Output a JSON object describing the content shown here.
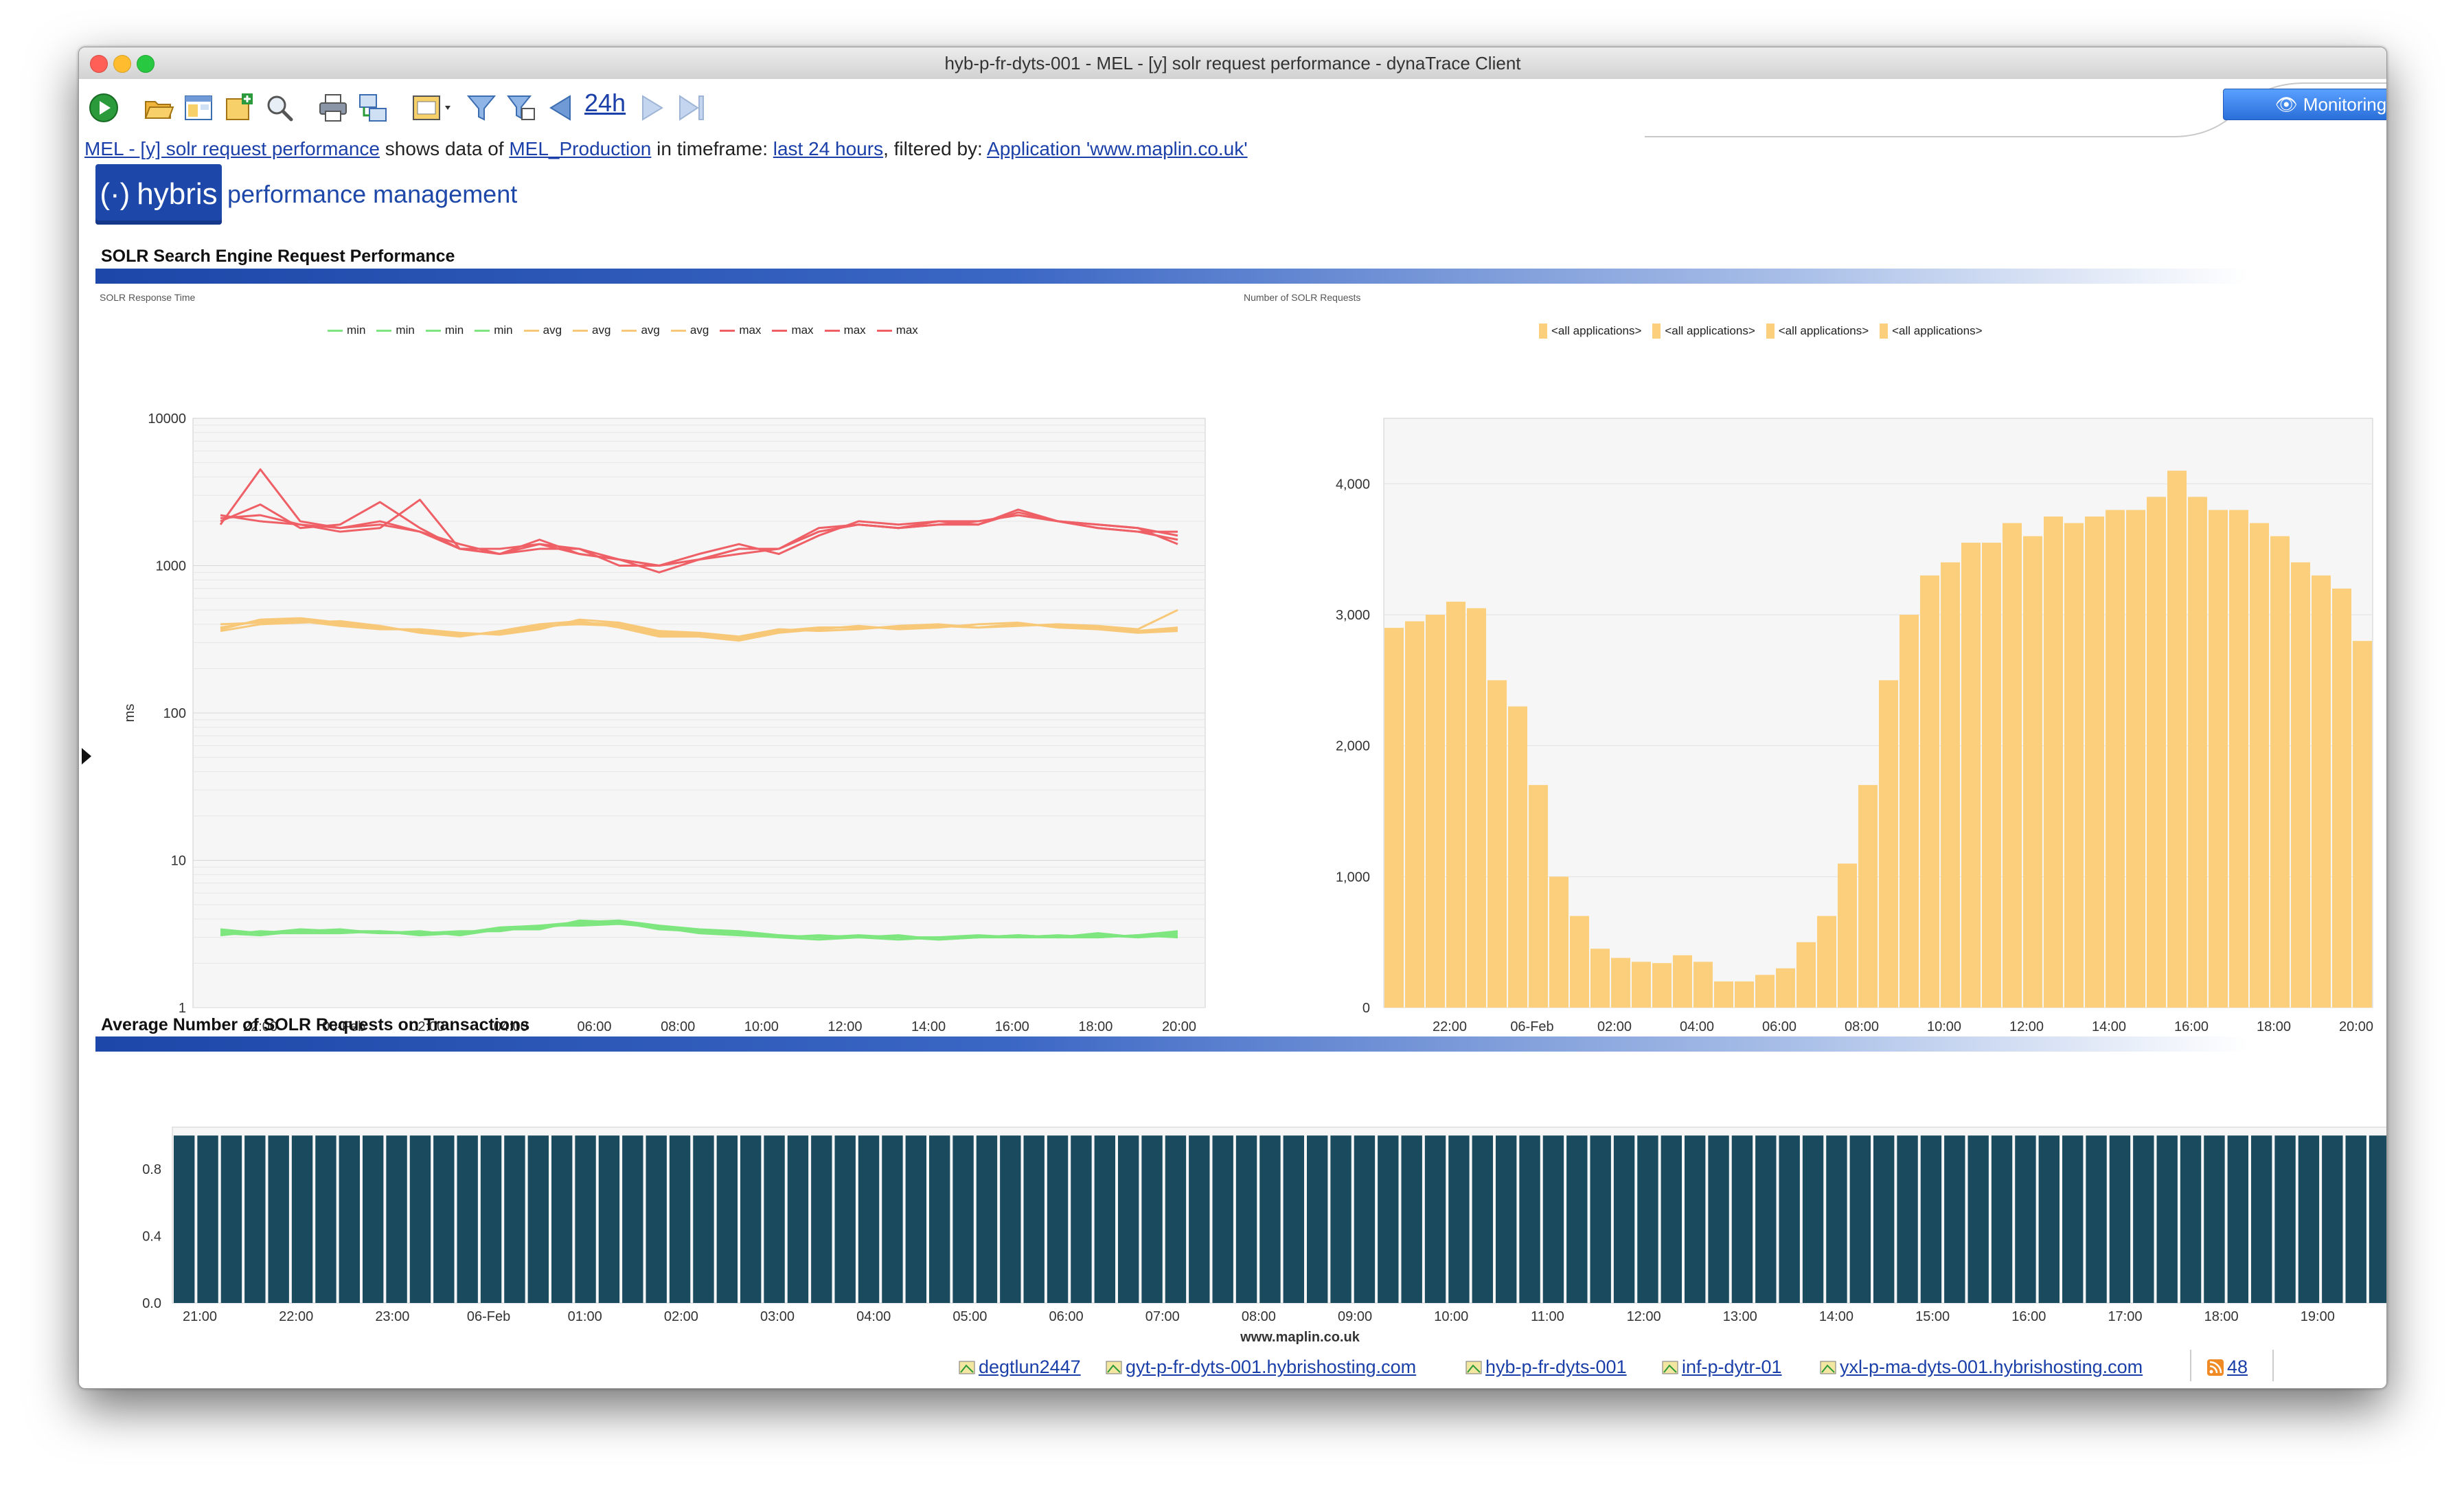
{
  "window": {
    "title": "hyb-p-fr-dyts-001 - MEL - [y] solr request performance - dynaTrace Client"
  },
  "toolbar": {
    "timeframe_label": "24h",
    "icons": [
      "play-icon",
      "open-folder-icon",
      "dashboard-icon",
      "add-dashlet-icon",
      "search-icon",
      "print-icon",
      "export-icon",
      "session-dropdown-icon",
      "filter-icon",
      "filter-edit-icon",
      "back-arrow-icon",
      "forward-arrow-icon",
      "last-icon"
    ],
    "monitoring_label": "Monitoring",
    "overflow_label": "»"
  },
  "info": {
    "dashboard_link": "MEL - [y] solr request performance",
    "text1": " shows data of ",
    "profile_link": "MEL_Production",
    "text2": " in timeframe: ",
    "timeframe_link": "last 24 hours",
    "text3": ", filtered by: ",
    "filter_link": "Application 'www.maplin.co.uk'"
  },
  "logo": {
    "brand": "hybris",
    "tagline": "performance management"
  },
  "sections": {
    "solr": "SOLR Search Engine Request Performance",
    "avg": "Average Number of SOLR Requests on Transactions"
  },
  "colors": {
    "min": "#7ee67e",
    "avg": "#f8c879",
    "max": "#ef6066",
    "bars_orange": "#fbcf7c",
    "bars_teal": "#1a4a5e",
    "brand_blue": "#1d47a8"
  },
  "chart_data": [
    {
      "type": "line",
      "title": "SOLR Response Time",
      "ylabel": "ms",
      "yscale": "log",
      "ylim": [
        1,
        10000
      ],
      "ytick_labels": [
        "10000",
        "1000",
        "100",
        "10",
        "1"
      ],
      "xtick_labels": [
        "22:00",
        "06-Feb",
        "02:00",
        "04:00",
        "06:00",
        "08:00",
        "10:00",
        "12:00",
        "14:00",
        "16:00",
        "18:00",
        "20:00"
      ],
      "legend": [
        "min",
        "min",
        "min",
        "min",
        "avg",
        "avg",
        "avg",
        "avg",
        "max",
        "max",
        "max",
        "max"
      ],
      "x": [
        "20:00",
        "21:00",
        "22:00",
        "23:00",
        "06-Feb",
        "01:00",
        "02:00",
        "03:00",
        "04:00",
        "05:00",
        "06:00",
        "07:00",
        "08:00",
        "09:00",
        "10:00",
        "11:00",
        "12:00",
        "13:00",
        "14:00",
        "15:00",
        "16:00",
        "17:00",
        "18:00",
        "19:00",
        "20:00"
      ],
      "series": [
        {
          "name": "min",
          "values": [
            3.3,
            3.2,
            3.4,
            3.3,
            3.2,
            3.3,
            3.1,
            3.4,
            3.5,
            3.7,
            3.8,
            3.4,
            3.3,
            3.2,
            3.0,
            3.1,
            3.0,
            2.9,
            3.0,
            3.0,
            3.1,
            3.0,
            3.1,
            3.0,
            3.2
          ]
        },
        {
          "name": "min",
          "values": [
            3.1,
            3.3,
            3.2,
            3.2,
            3.3,
            3.1,
            3.2,
            3.5,
            3.6,
            3.8,
            3.9,
            3.6,
            3.4,
            3.3,
            3.1,
            3.0,
            3.1,
            3.0,
            2.9,
            3.0,
            3.0,
            3.1,
            3.0,
            3.1,
            3.3
          ]
        },
        {
          "name": "min",
          "values": [
            3.2,
            3.1,
            3.3,
            3.4,
            3.2,
            3.2,
            3.3,
            3.3,
            3.6,
            3.6,
            3.7,
            3.5,
            3.2,
            3.1,
            3.0,
            2.9,
            3.0,
            3.0,
            3.0,
            3.1,
            3.0,
            3.0,
            3.2,
            3.0,
            3.1
          ]
        },
        {
          "name": "min",
          "values": [
            3.4,
            3.2,
            3.2,
            3.3,
            3.3,
            3.2,
            3.2,
            3.4,
            3.4,
            3.9,
            3.8,
            3.5,
            3.3,
            3.2,
            3.1,
            3.0,
            3.0,
            3.1,
            2.9,
            3.0,
            3.1,
            3.0,
            3.0,
            3.1,
            3.0
          ]
        },
        {
          "name": "avg",
          "values": [
            380,
            420,
            430,
            400,
            380,
            360,
            340,
            350,
            380,
            410,
            400,
            350,
            340,
            320,
            360,
            380,
            380,
            380,
            390,
            380,
            400,
            390,
            380,
            360,
            380
          ]
        },
        {
          "name": "avg",
          "values": [
            360,
            400,
            410,
            420,
            390,
            350,
            330,
            360,
            400,
            420,
            380,
            330,
            330,
            310,
            350,
            370,
            390,
            370,
            380,
            400,
            410,
            380,
            370,
            350,
            360
          ]
        },
        {
          "name": "avg",
          "values": [
            400,
            410,
            420,
            390,
            370,
            370,
            350,
            340,
            370,
            430,
            410,
            360,
            350,
            330,
            370,
            360,
            370,
            390,
            400,
            380,
            390,
            400,
            390,
            370,
            500
          ]
        },
        {
          "name": "avg",
          "values": [
            370,
            430,
            440,
            410,
            380,
            360,
            340,
            350,
            390,
            400,
            390,
            340,
            340,
            320,
            360,
            380,
            380,
            380,
            390,
            380,
            400,
            390,
            380,
            360,
            370
          ]
        },
        {
          "name": "max",
          "values": [
            2200,
            2000,
            1900,
            1800,
            2000,
            1700,
            1300,
            1200,
            1400,
            1300,
            1100,
            1000,
            1100,
            1300,
            1300,
            1700,
            1900,
            1800,
            1900,
            1900,
            2300,
            2000,
            1900,
            1800,
            1600
          ]
        },
        {
          "name": "max",
          "values": [
            2000,
            2600,
            1800,
            1900,
            2700,
            1800,
            1300,
            1200,
            1500,
            1200,
            1100,
            1000,
            1200,
            1400,
            1200,
            1600,
            2000,
            1900,
            2000,
            2000,
            2200,
            2000,
            1800,
            1700,
            1500
          ]
        },
        {
          "name": "max",
          "values": [
            1900,
            4500,
            2000,
            1800,
            1900,
            1700,
            1400,
            1200,
            1300,
            1300,
            1000,
            1000,
            1100,
            1300,
            1300,
            1800,
            1900,
            1800,
            2000,
            1900,
            2400,
            2000,
            1900,
            1800,
            1400
          ]
        },
        {
          "name": "max",
          "values": [
            2100,
            2200,
            1900,
            1700,
            1800,
            2800,
            1300,
            1300,
            1400,
            1200,
            1100,
            900,
            1100,
            1200,
            1300,
            1700,
            1900,
            1800,
            1900,
            2000,
            2200,
            2000,
            1800,
            1700,
            1700
          ]
        }
      ]
    },
    {
      "type": "bar",
      "title": "Number of SOLR Requests",
      "ylim": [
        0,
        4500
      ],
      "ytick_labels": [
        "4,000",
        "3,000",
        "2,000",
        "1,000",
        "0"
      ],
      "xtick_labels": [
        "22:00",
        "06-Feb",
        "02:00",
        "04:00",
        "06:00",
        "08:00",
        "10:00",
        "12:00",
        "14:00",
        "16:00",
        "18:00",
        "20:00"
      ],
      "legend": [
        "<all applications>",
        "<all applications>",
        "<all applications>",
        "<all applications>"
      ],
      "x": [
        "21:00",
        "21:30",
        "22:00",
        "22:30",
        "23:00",
        "23:30",
        "06-Feb",
        "00:30",
        "01:00",
        "01:30",
        "02:00",
        "02:30",
        "03:00",
        "03:30",
        "04:00",
        "04:30",
        "05:00",
        "05:30",
        "06:00",
        "06:30",
        "07:00",
        "07:30",
        "08:00",
        "08:30",
        "09:00",
        "09:30",
        "10:00",
        "10:30",
        "11:00",
        "11:30",
        "12:00",
        "12:30",
        "13:00",
        "13:30",
        "14:00",
        "14:30",
        "15:00",
        "15:30",
        "16:00",
        "16:30",
        "17:00",
        "17:30",
        "18:00",
        "18:30",
        "19:00",
        "19:30",
        "20:00",
        "20:30"
      ],
      "values": [
        2900,
        2950,
        3000,
        3100,
        3050,
        2500,
        2300,
        1700,
        1000,
        700,
        450,
        380,
        350,
        340,
        400,
        350,
        200,
        200,
        250,
        300,
        500,
        700,
        1100,
        1700,
        2500,
        3000,
        3300,
        3400,
        3550,
        3550,
        3700,
        3600,
        3750,
        3700,
        3750,
        3800,
        3800,
        3900,
        4100,
        3900,
        3800,
        3800,
        3700,
        3600,
        3400,
        3300,
        3200,
        2800
      ]
    },
    {
      "type": "bar",
      "title": "Average Number of SOLR Requests on Transactions",
      "xlabel": "www.maplin.co.uk",
      "ylim": [
        0,
        1.05
      ],
      "ytick_labels": [
        "0.8",
        "0.4",
        "0.0"
      ],
      "xtick_labels": [
        "21:00",
        "22:00",
        "23:00",
        "06-Feb",
        "01:00",
        "02:00",
        "03:00",
        "04:00",
        "05:00",
        "06:00",
        "07:00",
        "08:00",
        "09:00",
        "10:00",
        "11:00",
        "12:00",
        "13:00",
        "14:00",
        "15:00",
        "16:00",
        "17:00",
        "18:00",
        "19:00",
        "20:00"
      ],
      "values": [
        1.0,
        1.0,
        1.0,
        1.0,
        1.0,
        1.0,
        1.0,
        1.0,
        1.0,
        1.0,
        1.0,
        1.0,
        1.0,
        1.0,
        1.0,
        1.0,
        1.0,
        1.0,
        1.0,
        1.0,
        1.0,
        1.0,
        1.0,
        1.0,
        1.0,
        1.0,
        1.0,
        1.0,
        1.0,
        1.0,
        1.0,
        1.0,
        1.0,
        1.0,
        1.0,
        1.0,
        1.0,
        1.0,
        1.0,
        1.0,
        1.0,
        1.0,
        1.0,
        1.0,
        1.0,
        1.0,
        1.0,
        1.0
      ]
    }
  ],
  "statusbar": {
    "hosts": [
      "degtlun2447",
      "gyt-p-fr-dyts-001.hybrishosting.com",
      "hyb-p-fr-dyts-001",
      "inf-p-dytr-01",
      "yxl-p-ma-dyts-001.hybrishosting.com"
    ],
    "count": "48"
  }
}
